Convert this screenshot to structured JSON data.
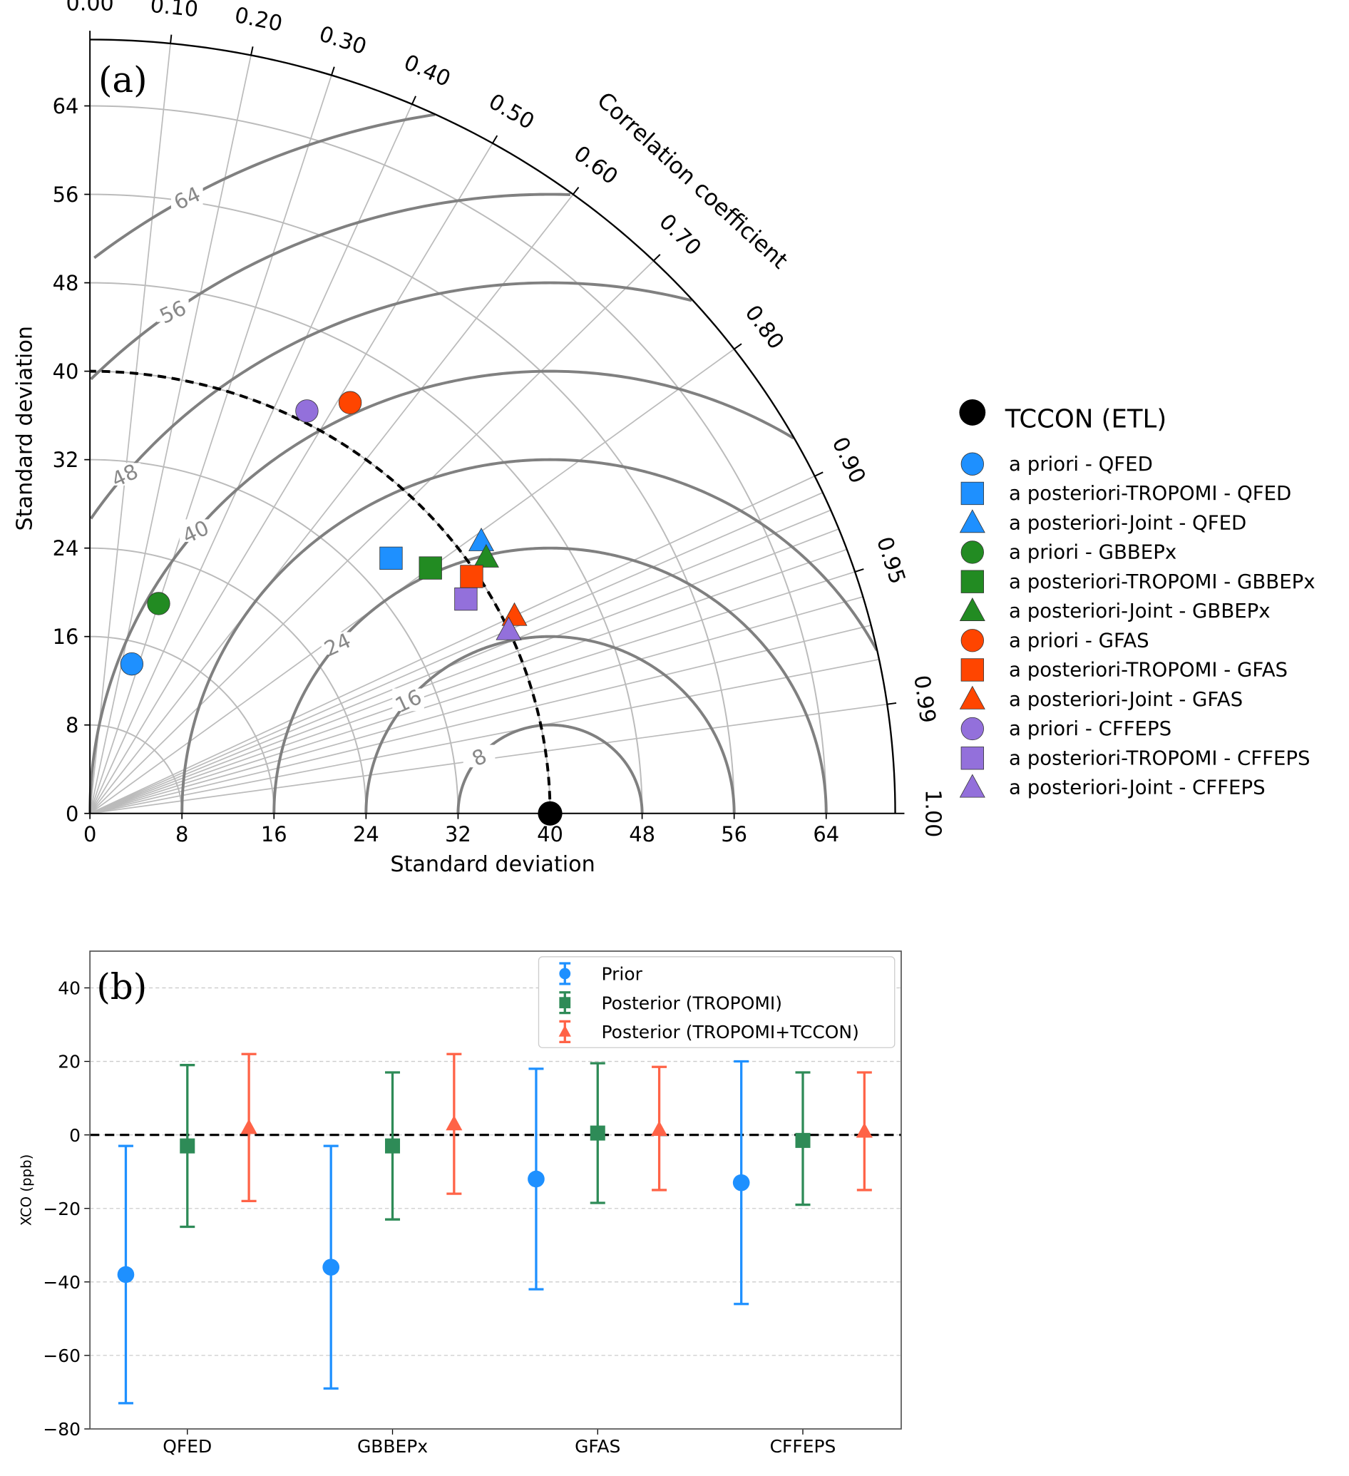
{
  "chart_data": [
    {
      "type": "scatter",
      "subtype": "taylor-diagram",
      "panel_label": "(a)",
      "xlabel": "Standard deviation",
      "ylabel": "Standard deviation",
      "angular_label": "Correlation coefficient",
      "std_max": 70,
      "std_ticks": [
        0,
        8,
        16,
        24,
        32,
        40,
        48,
        56,
        64
      ],
      "corr_ticks": [
        "0.00",
        "0.10",
        "0.20",
        "0.30",
        "0.40",
        "0.50",
        "0.60",
        "0.70",
        "0.80",
        "0.90",
        "0.95",
        "0.99",
        "1.00"
      ],
      "rms_contours": [
        8,
        16,
        24,
        32,
        40,
        48,
        56,
        64
      ],
      "rms_labels": [
        "8",
        "16",
        "24",
        "40",
        "48",
        "56",
        "64"
      ],
      "reference": {
        "name": "TCCON (ETL)",
        "std": 40,
        "corr": 1.0,
        "color": "#000000"
      },
      "series": [
        {
          "name": "a priori - QFED",
          "marker": "circle",
          "color": "#1e90ff",
          "std": 14.0,
          "corr": 0.26
        },
        {
          "name": "a posteriori-TROPOMI - QFED",
          "marker": "square",
          "color": "#1e90ff",
          "std": 34.9,
          "corr": 0.75
        },
        {
          "name": "a posteriori-Joint - QFED",
          "marker": "triangle",
          "color": "#1e90ff",
          "std": 42.0,
          "corr": 0.81
        },
        {
          "name": "a priori - GBBEPx",
          "marker": "circle",
          "color": "#228b22",
          "std": 19.9,
          "corr": 0.3
        },
        {
          "name": "a posteriori-TROPOMI - GBBEPx",
          "marker": "square",
          "color": "#228b22",
          "std": 37.0,
          "corr": 0.8
        },
        {
          "name": "a posteriori-Joint - GBBEPx",
          "marker": "triangle",
          "color": "#228b22",
          "std": 41.5,
          "corr": 0.83
        },
        {
          "name": "a priori - GFAS",
          "marker": "circle",
          "color": "#ff4500",
          "std": 43.5,
          "corr": 0.52
        },
        {
          "name": "a posteriori-TROPOMI - GFAS",
          "marker": "square",
          "color": "#ff4500",
          "std": 39.5,
          "corr": 0.84
        },
        {
          "name": "a posteriori-Joint - GFAS",
          "marker": "triangle",
          "color": "#ff4500",
          "std": 41.0,
          "corr": 0.9
        },
        {
          "name": "a priori - CFFEPS",
          "marker": "circle",
          "color": "#9370db",
          "std": 41.0,
          "corr": 0.46
        },
        {
          "name": "a posteriori-TROPOMI - CFFEPS",
          "marker": "square",
          "color": "#9370db",
          "std": 38.0,
          "corr": 0.86
        },
        {
          "name": "a posteriori-Joint - CFFEPS",
          "marker": "triangle",
          "color": "#9370db",
          "std": 40.0,
          "corr": 0.91
        }
      ],
      "legend_position": "right"
    },
    {
      "type": "scatter",
      "subtype": "errorbar",
      "panel_label": "(b)",
      "ylabel": "XCO (ppb)",
      "ylim": [
        -80,
        50
      ],
      "yticks": [
        -80,
        -60,
        -40,
        -20,
        0,
        20,
        40
      ],
      "ytick_labels": [
        "−80",
        "−60",
        "−40",
        "−20",
        "0",
        "20",
        "40"
      ],
      "categories": [
        "QFED",
        "GBBEPx",
        "GFAS",
        "CFFEPS"
      ],
      "grid": "y-dashed",
      "reference_line": 0,
      "legend_position": "top-right",
      "series": [
        {
          "name": "Prior",
          "marker": "circle",
          "color": "#1e90ff",
          "offset": -0.3,
          "values": [
            -38,
            -36,
            -12,
            -13
          ],
          "lower": [
            -73,
            -69,
            -42,
            -46
          ],
          "upper": [
            -3,
            -3,
            18,
            20
          ]
        },
        {
          "name": "Posterior (TROPOMI)",
          "marker": "square",
          "color": "#2e8b57",
          "offset": 0,
          "values": [
            -3,
            -3,
            0.5,
            -1.5
          ],
          "lower": [
            -25,
            -23,
            -18.5,
            -19
          ],
          "upper": [
            19,
            17,
            19.5,
            17
          ]
        },
        {
          "name": "Posterior (TROPOMI+TCCON)",
          "marker": "triangle",
          "color": "#ff6347",
          "offset": 0.3,
          "values": [
            2,
            3,
            1.5,
            1
          ],
          "lower": [
            -18,
            -16,
            -15,
            -15
          ],
          "upper": [
            22,
            22,
            18.5,
            17
          ]
        }
      ]
    }
  ]
}
